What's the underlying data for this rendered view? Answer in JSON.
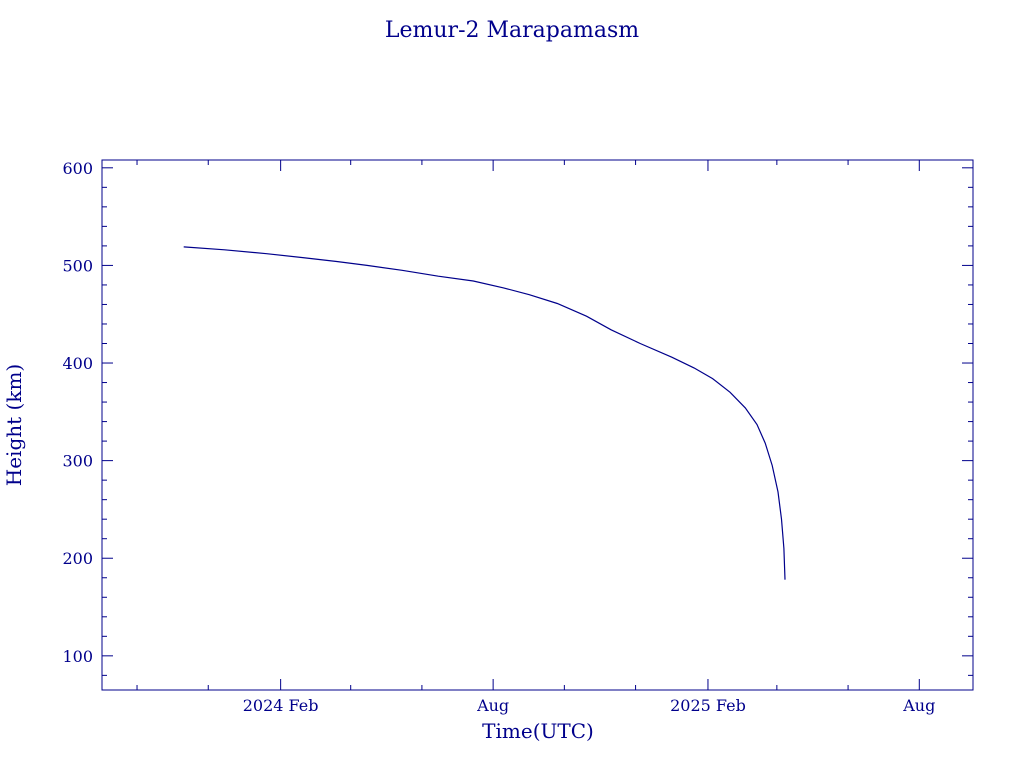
{
  "colors": {
    "ink": "#00008b",
    "background": "#ffffff"
  },
  "chart_data": {
    "type": "line",
    "title": "Lemur-2 Marapamasm",
    "xlabel": "Time(UTC)",
    "ylabel": "Height (km)",
    "xlim": [
      "2023-09-01",
      "2025-09-16"
    ],
    "ylim": [
      65,
      608
    ],
    "x_ticks": [
      {
        "date": "2024-02-01",
        "label": "2024 Feb"
      },
      {
        "date": "2024-08-01",
        "label": "Aug"
      },
      {
        "date": "2025-02-01",
        "label": "2025 Feb"
      },
      {
        "date": "2025-08-01",
        "label": "Aug"
      }
    ],
    "y_ticks": [
      100,
      200,
      300,
      400,
      500,
      600
    ],
    "grid": false,
    "series": [
      {
        "points": [
          [
            "2023-11-10",
            519
          ],
          [
            "2023-12-15",
            516
          ],
          [
            "2024-01-20",
            512
          ],
          [
            "2024-02-20",
            508
          ],
          [
            "2024-03-20",
            504
          ],
          [
            "2024-04-15",
            500
          ],
          [
            "2024-05-15",
            495
          ],
          [
            "2024-06-15",
            489
          ],
          [
            "2024-07-15",
            484
          ],
          [
            "2024-08-10",
            477
          ],
          [
            "2024-09-01",
            470
          ],
          [
            "2024-09-25",
            461
          ],
          [
            "2024-10-20",
            448
          ],
          [
            "2024-11-10",
            434
          ],
          [
            "2024-12-05",
            420
          ],
          [
            "2025-01-01",
            406
          ],
          [
            "2025-01-20",
            395
          ],
          [
            "2025-02-05",
            384
          ],
          [
            "2025-02-20",
            370
          ],
          [
            "2025-03-05",
            354
          ],
          [
            "2025-03-15",
            337
          ],
          [
            "2025-03-22",
            318
          ],
          [
            "2025-03-28",
            295
          ],
          [
            "2025-04-02",
            268
          ],
          [
            "2025-04-05",
            240
          ],
          [
            "2025-04-07",
            210
          ],
          [
            "2025-04-08",
            178
          ]
        ]
      }
    ]
  }
}
